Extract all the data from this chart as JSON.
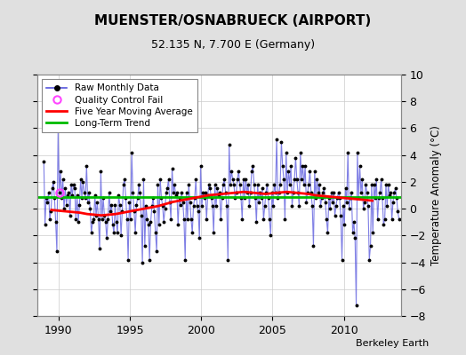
{
  "title": "MUENSTER/OSNABRUECK (AIRPORT)",
  "subtitle": "52.135 N, 7.700 E (Germany)",
  "ylabel": "Temperature Anomaly (°C)",
  "credit": "Berkeley Earth",
  "ylim": [
    -8,
    10
  ],
  "xlim": [
    1988.5,
    2014.0
  ],
  "xticks": [
    1990,
    1995,
    2000,
    2005,
    2010
  ],
  "yticks": [
    -8,
    -6,
    -4,
    -2,
    0,
    2,
    4,
    6,
    8,
    10
  ],
  "bg_color": "#e0e0e0",
  "plot_bg_color": "#ffffff",
  "raw_color": "#5555dd",
  "raw_dot_color": "#000000",
  "ma_color": "#ff0000",
  "trend_color": "#00bb00",
  "qc_color": "#ff44ff",
  "long_term_trend_value": 0.85,
  "raw_data": [
    [
      1988.958,
      3.5
    ],
    [
      1989.042,
      -1.2
    ],
    [
      1989.125,
      0.8
    ],
    [
      1989.208,
      0.5
    ],
    [
      1989.292,
      1.2
    ],
    [
      1989.375,
      -0.8
    ],
    [
      1989.458,
      -0.2
    ],
    [
      1989.542,
      1.5
    ],
    [
      1989.625,
      2.0
    ],
    [
      1989.708,
      0.8
    ],
    [
      1989.792,
      -1.0
    ],
    [
      1989.875,
      -3.2
    ],
    [
      1989.958,
      5.8
    ],
    [
      1990.042,
      1.2
    ],
    [
      1990.125,
      2.8
    ],
    [
      1990.208,
      0.8
    ],
    [
      1990.292,
      2.2
    ],
    [
      1990.375,
      0.0
    ],
    [
      1990.458,
      1.5
    ],
    [
      1990.542,
      0.3
    ],
    [
      1990.625,
      1.0
    ],
    [
      1990.708,
      1.2
    ],
    [
      1990.792,
      -0.5
    ],
    [
      1990.875,
      1.8
    ],
    [
      1990.958,
      1.0
    ],
    [
      1991.042,
      1.8
    ],
    [
      1991.125,
      1.5
    ],
    [
      1991.208,
      -0.8
    ],
    [
      1991.292,
      1.0
    ],
    [
      1991.375,
      -1.0
    ],
    [
      1991.458,
      0.3
    ],
    [
      1991.542,
      2.2
    ],
    [
      1991.625,
      0.8
    ],
    [
      1991.708,
      2.0
    ],
    [
      1991.792,
      1.2
    ],
    [
      1991.875,
      0.8
    ],
    [
      1991.958,
      3.2
    ],
    [
      1992.042,
      0.5
    ],
    [
      1992.125,
      1.2
    ],
    [
      1992.208,
      0.0
    ],
    [
      1992.292,
      -1.8
    ],
    [
      1992.375,
      -1.0
    ],
    [
      1992.458,
      -0.8
    ],
    [
      1992.542,
      1.0
    ],
    [
      1992.625,
      -0.5
    ],
    [
      1992.708,
      0.5
    ],
    [
      1992.792,
      -0.8
    ],
    [
      1992.875,
      -3.0
    ],
    [
      1992.958,
      2.8
    ],
    [
      1993.042,
      -0.8
    ],
    [
      1993.125,
      0.8
    ],
    [
      1993.208,
      -0.5
    ],
    [
      1993.292,
      -1.0
    ],
    [
      1993.375,
      -2.2
    ],
    [
      1993.458,
      -0.8
    ],
    [
      1993.542,
      1.2
    ],
    [
      1993.625,
      -0.2
    ],
    [
      1993.708,
      0.3
    ],
    [
      1993.792,
      -1.2
    ],
    [
      1993.875,
      -1.8
    ],
    [
      1993.958,
      0.3
    ],
    [
      1994.042,
      -1.0
    ],
    [
      1994.125,
      -1.8
    ],
    [
      1994.208,
      1.0
    ],
    [
      1994.292,
      0.3
    ],
    [
      1994.375,
      -2.0
    ],
    [
      1994.458,
      -0.2
    ],
    [
      1994.542,
      1.8
    ],
    [
      1994.625,
      2.2
    ],
    [
      1994.708,
      0.8
    ],
    [
      1994.792,
      -0.8
    ],
    [
      1994.875,
      -3.8
    ],
    [
      1994.958,
      0.5
    ],
    [
      1995.042,
      -0.8
    ],
    [
      1995.125,
      4.2
    ],
    [
      1995.208,
      1.2
    ],
    [
      1995.292,
      -0.2
    ],
    [
      1995.375,
      -1.8
    ],
    [
      1995.458,
      0.3
    ],
    [
      1995.542,
      0.8
    ],
    [
      1995.625,
      1.8
    ],
    [
      1995.708,
      1.2
    ],
    [
      1995.792,
      -0.5
    ],
    [
      1995.875,
      -4.0
    ],
    [
      1995.958,
      2.2
    ],
    [
      1996.042,
      -2.8
    ],
    [
      1996.125,
      0.2
    ],
    [
      1996.208,
      -0.8
    ],
    [
      1996.292,
      -1.2
    ],
    [
      1996.375,
      -3.8
    ],
    [
      1996.458,
      -1.0
    ],
    [
      1996.542,
      0.2
    ],
    [
      1996.625,
      0.8
    ],
    [
      1996.708,
      -0.2
    ],
    [
      1996.792,
      -1.8
    ],
    [
      1996.875,
      -3.2
    ],
    [
      1996.958,
      1.8
    ],
    [
      1997.042,
      -1.2
    ],
    [
      1997.125,
      2.2
    ],
    [
      1997.208,
      0.8
    ],
    [
      1997.292,
      0.2
    ],
    [
      1997.375,
      -1.0
    ],
    [
      1997.458,
      0.0
    ],
    [
      1997.542,
      1.2
    ],
    [
      1997.625,
      1.5
    ],
    [
      1997.708,
      2.2
    ],
    [
      1997.792,
      0.5
    ],
    [
      1997.875,
      -0.8
    ],
    [
      1997.958,
      3.0
    ],
    [
      1998.042,
      1.2
    ],
    [
      1998.125,
      1.8
    ],
    [
      1998.208,
      1.0
    ],
    [
      1998.292,
      1.2
    ],
    [
      1998.375,
      -1.2
    ],
    [
      1998.458,
      0.8
    ],
    [
      1998.542,
      0.3
    ],
    [
      1998.625,
      1.2
    ],
    [
      1998.708,
      0.5
    ],
    [
      1998.792,
      -0.8
    ],
    [
      1998.875,
      -3.8
    ],
    [
      1998.958,
      1.2
    ],
    [
      1999.042,
      -0.8
    ],
    [
      1999.125,
      1.8
    ],
    [
      1999.208,
      0.5
    ],
    [
      1999.292,
      -0.8
    ],
    [
      1999.375,
      -1.8
    ],
    [
      1999.458,
      0.2
    ],
    [
      1999.542,
      0.8
    ],
    [
      1999.625,
      2.2
    ],
    [
      1999.708,
      0.2
    ],
    [
      1999.792,
      -0.2
    ],
    [
      1999.875,
      -2.2
    ],
    [
      1999.958,
      3.2
    ],
    [
      2000.042,
      0.2
    ],
    [
      2000.125,
      1.2
    ],
    [
      2000.208,
      0.8
    ],
    [
      2000.292,
      1.2
    ],
    [
      2000.375,
      -0.8
    ],
    [
      2000.458,
      1.0
    ],
    [
      2000.542,
      1.8
    ],
    [
      2000.625,
      1.5
    ],
    [
      2000.708,
      0.8
    ],
    [
      2000.792,
      0.2
    ],
    [
      2000.875,
      -1.8
    ],
    [
      2000.958,
      1.8
    ],
    [
      2001.042,
      0.2
    ],
    [
      2001.125,
      1.5
    ],
    [
      2001.208,
      1.0
    ],
    [
      2001.292,
      1.2
    ],
    [
      2001.375,
      -0.8
    ],
    [
      2001.458,
      0.8
    ],
    [
      2001.542,
      1.8
    ],
    [
      2001.625,
      2.2
    ],
    [
      2001.708,
      1.2
    ],
    [
      2001.792,
      0.2
    ],
    [
      2001.875,
      -3.8
    ],
    [
      2001.958,
      4.8
    ],
    [
      2002.042,
      1.8
    ],
    [
      2002.125,
      2.8
    ],
    [
      2002.208,
      2.2
    ],
    [
      2002.292,
      1.8
    ],
    [
      2002.375,
      0.8
    ],
    [
      2002.458,
      1.2
    ],
    [
      2002.542,
      2.2
    ],
    [
      2002.625,
      2.8
    ],
    [
      2002.708,
      1.8
    ],
    [
      2002.792,
      0.8
    ],
    [
      2002.875,
      -0.8
    ],
    [
      2002.958,
      2.2
    ],
    [
      2003.042,
      0.8
    ],
    [
      2003.125,
      2.2
    ],
    [
      2003.208,
      1.2
    ],
    [
      2003.292,
      1.8
    ],
    [
      2003.375,
      0.2
    ],
    [
      2003.458,
      1.2
    ],
    [
      2003.542,
      2.8
    ],
    [
      2003.625,
      3.2
    ],
    [
      2003.708,
      1.8
    ],
    [
      2003.792,
      0.8
    ],
    [
      2003.875,
      -1.0
    ],
    [
      2003.958,
      1.8
    ],
    [
      2004.042,
      0.5
    ],
    [
      2004.125,
      1.2
    ],
    [
      2004.208,
      0.8
    ],
    [
      2004.292,
      1.5
    ],
    [
      2004.375,
      -0.8
    ],
    [
      2004.458,
      0.2
    ],
    [
      2004.542,
      1.2
    ],
    [
      2004.625,
      1.8
    ],
    [
      2004.708,
      0.8
    ],
    [
      2004.792,
      -0.8
    ],
    [
      2004.875,
      -2.0
    ],
    [
      2004.958,
      1.2
    ],
    [
      2005.042,
      0.2
    ],
    [
      2005.125,
      1.8
    ],
    [
      2005.208,
      1.2
    ],
    [
      2005.292,
      5.2
    ],
    [
      2005.375,
      0.8
    ],
    [
      2005.458,
      1.2
    ],
    [
      2005.542,
      1.8
    ],
    [
      2005.625,
      5.0
    ],
    [
      2005.708,
      3.2
    ],
    [
      2005.792,
      2.2
    ],
    [
      2005.875,
      -0.8
    ],
    [
      2005.958,
      4.2
    ],
    [
      2006.042,
      1.2
    ],
    [
      2006.125,
      2.8
    ],
    [
      2006.208,
      1.8
    ],
    [
      2006.292,
      3.2
    ],
    [
      2006.375,
      0.2
    ],
    [
      2006.458,
      1.2
    ],
    [
      2006.542,
      2.2
    ],
    [
      2006.625,
      3.8
    ],
    [
      2006.708,
      2.2
    ],
    [
      2006.792,
      1.2
    ],
    [
      2006.875,
      0.2
    ],
    [
      2006.958,
      4.2
    ],
    [
      2007.042,
      2.2
    ],
    [
      2007.125,
      3.2
    ],
    [
      2007.208,
      1.8
    ],
    [
      2007.292,
      3.2
    ],
    [
      2007.375,
      0.5
    ],
    [
      2007.458,
      1.2
    ],
    [
      2007.542,
      1.8
    ],
    [
      2007.625,
      2.8
    ],
    [
      2007.708,
      1.2
    ],
    [
      2007.792,
      0.2
    ],
    [
      2007.875,
      -2.8
    ],
    [
      2007.958,
      2.8
    ],
    [
      2008.042,
      0.8
    ],
    [
      2008.125,
      2.2
    ],
    [
      2008.208,
      1.2
    ],
    [
      2008.292,
      1.8
    ],
    [
      2008.375,
      0.2
    ],
    [
      2008.458,
      0.8
    ],
    [
      2008.542,
      1.2
    ],
    [
      2008.625,
      1.5
    ],
    [
      2008.708,
      0.5
    ],
    [
      2008.792,
      -0.8
    ],
    [
      2008.875,
      -1.8
    ],
    [
      2008.958,
      0.8
    ],
    [
      2009.042,
      0.0
    ],
    [
      2009.125,
      1.2
    ],
    [
      2009.208,
      0.5
    ],
    [
      2009.292,
      1.2
    ],
    [
      2009.375,
      -0.5
    ],
    [
      2009.458,
      0.2
    ],
    [
      2009.542,
      0.8
    ],
    [
      2009.625,
      1.2
    ],
    [
      2009.708,
      0.8
    ],
    [
      2009.792,
      -0.5
    ],
    [
      2009.875,
      -3.8
    ],
    [
      2009.958,
      0.2
    ],
    [
      2010.042,
      -1.2
    ],
    [
      2010.125,
      1.5
    ],
    [
      2010.208,
      0.5
    ],
    [
      2010.292,
      4.2
    ],
    [
      2010.375,
      0.0
    ],
    [
      2010.458,
      0.8
    ],
    [
      2010.542,
      1.2
    ],
    [
      2010.625,
      -1.8
    ],
    [
      2010.708,
      -1.0
    ],
    [
      2010.792,
      -2.2
    ],
    [
      2010.875,
      -7.2
    ],
    [
      2010.958,
      4.2
    ],
    [
      2011.042,
      0.8
    ],
    [
      2011.125,
      3.2
    ],
    [
      2011.208,
      1.2
    ],
    [
      2011.292,
      2.2
    ],
    [
      2011.375,
      0.0
    ],
    [
      2011.458,
      0.5
    ],
    [
      2011.542,
      1.8
    ],
    [
      2011.625,
      1.2
    ],
    [
      2011.708,
      0.2
    ],
    [
      2011.792,
      -3.8
    ],
    [
      2011.875,
      -2.8
    ],
    [
      2011.958,
      1.8
    ],
    [
      2012.042,
      -1.8
    ],
    [
      2012.125,
      1.8
    ],
    [
      2012.208,
      0.8
    ],
    [
      2012.292,
      2.2
    ],
    [
      2012.375,
      -0.8
    ],
    [
      2012.458,
      0.8
    ],
    [
      2012.542,
      1.2
    ],
    [
      2012.625,
      2.2
    ],
    [
      2012.708,
      0.8
    ],
    [
      2012.792,
      -1.2
    ],
    [
      2012.875,
      -0.8
    ],
    [
      2012.958,
      1.8
    ],
    [
      2013.042,
      0.2
    ],
    [
      2013.125,
      1.8
    ],
    [
      2013.208,
      1.0
    ],
    [
      2013.292,
      1.2
    ],
    [
      2013.375,
      -0.8
    ],
    [
      2013.458,
      0.5
    ],
    [
      2013.542,
      1.2
    ],
    [
      2013.625,
      1.5
    ],
    [
      2013.708,
      0.8
    ],
    [
      2013.792,
      -0.2
    ],
    [
      2013.875,
      -0.8
    ]
  ],
  "qc_fail_points": [
    [
      1990.042,
      1.2
    ]
  ],
  "moving_avg": [
    [
      1989.5,
      -0.1
    ],
    [
      1990.0,
      -0.15
    ],
    [
      1990.5,
      -0.2
    ],
    [
      1991.0,
      -0.25
    ],
    [
      1991.5,
      -0.3
    ],
    [
      1992.0,
      -0.4
    ],
    [
      1992.5,
      -0.45
    ],
    [
      1993.0,
      -0.5
    ],
    [
      1993.5,
      -0.45
    ],
    [
      1994.0,
      -0.4
    ],
    [
      1994.5,
      -0.3
    ],
    [
      1995.0,
      -0.2
    ],
    [
      1995.5,
      -0.1
    ],
    [
      1996.0,
      0.0
    ],
    [
      1996.5,
      0.1
    ],
    [
      1997.0,
      0.2
    ],
    [
      1997.5,
      0.35
    ],
    [
      1998.0,
      0.5
    ],
    [
      1998.5,
      0.6
    ],
    [
      1999.0,
      0.7
    ],
    [
      1999.5,
      0.8
    ],
    [
      2000.0,
      0.9
    ],
    [
      2000.5,
      1.0
    ],
    [
      2001.0,
      1.05
    ],
    [
      2001.5,
      1.1
    ],
    [
      2002.0,
      1.15
    ],
    [
      2002.5,
      1.2
    ],
    [
      2003.0,
      1.25
    ],
    [
      2003.5,
      1.2
    ],
    [
      2004.0,
      1.15
    ],
    [
      2004.5,
      1.1
    ],
    [
      2005.0,
      1.15
    ],
    [
      2005.5,
      1.2
    ],
    [
      2006.0,
      1.25
    ],
    [
      2006.5,
      1.2
    ],
    [
      2007.0,
      1.15
    ],
    [
      2007.5,
      1.1
    ],
    [
      2008.0,
      1.0
    ],
    [
      2008.5,
      0.95
    ],
    [
      2009.0,
      0.9
    ],
    [
      2009.5,
      0.85
    ],
    [
      2010.0,
      0.8
    ],
    [
      2010.5,
      0.75
    ],
    [
      2011.0,
      0.7
    ],
    [
      2011.5,
      0.65
    ],
    [
      2012.0,
      0.6
    ]
  ]
}
